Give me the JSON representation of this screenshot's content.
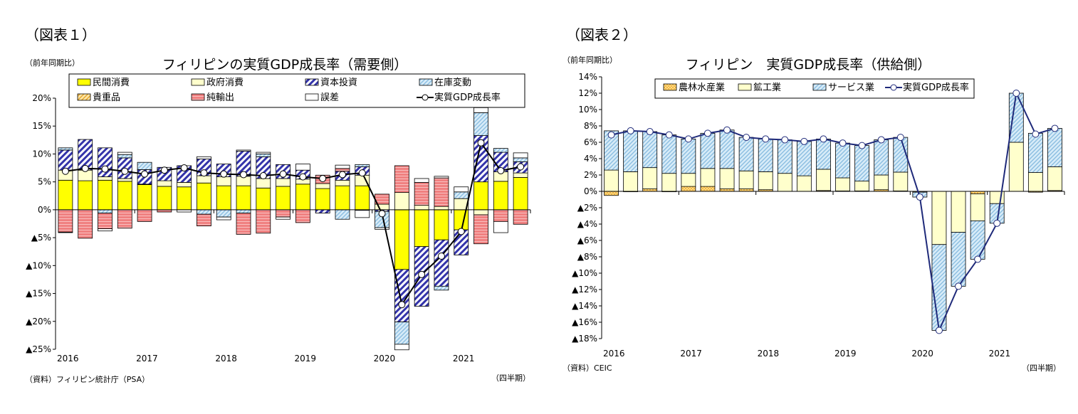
{
  "figure1": {
    "label": "（図表１）",
    "unit": "（前年同期比）",
    "source": "（資料）フィリピン統計庁（PSA）",
    "freq": "（四半期）"
  },
  "figure2": {
    "label": "（図表２）",
    "unit": "（前年同期比）",
    "source": "（資料）CEIC",
    "freq": "（四半期）"
  },
  "chart_data": [
    {
      "type": "bar",
      "stacked": true,
      "title": "フィリピンの実質GDP成長率（需要側）",
      "quarters": [
        "2016Q1",
        "2016Q2",
        "2016Q3",
        "2016Q4",
        "2017Q1",
        "2017Q2",
        "2017Q3",
        "2017Q4",
        "2018Q1",
        "2018Q2",
        "2018Q3",
        "2018Q4",
        "2019Q1",
        "2019Q2",
        "2019Q3",
        "2019Q4",
        "2020Q1",
        "2020Q2",
        "2020Q3",
        "2020Q4",
        "2021Q1",
        "2021Q2",
        "2021Q3",
        "2021Q4"
      ],
      "year_labels": [
        "2016",
        "2017",
        "2018",
        "2019",
        "2020",
        "2021"
      ],
      "ylim": [
        -25,
        20
      ],
      "yticks": [
        20,
        15,
        10,
        5,
        0,
        -5,
        -10,
        -15,
        -20,
        -25
      ],
      "ytick_labels": [
        "20%",
        "15%",
        "10%",
        "5%",
        "0%",
        "▲5%",
        "▲10%",
        "▲15%",
        "▲20%",
        "▲25%"
      ],
      "legend_position": "top",
      "series": [
        {
          "name": "民間消費",
          "color": "#ffff00",
          "pattern": "solid",
          "values": [
            5.3,
            5.2,
            5.3,
            5.1,
            4.5,
            4.2,
            4.1,
            4.8,
            4.3,
            4.3,
            3.9,
            4.2,
            4.6,
            3.8,
            4.3,
            4.3,
            0.0,
            -10.7,
            -6.6,
            -5.4,
            -3.6,
            5.0,
            5.1,
            5.8
          ]
        },
        {
          "name": "政府消費",
          "color": "#ffffcc",
          "pattern": "solid",
          "values": [
            1.8,
            1.9,
            0.6,
            0.5,
            0.1,
            1.0,
            0.8,
            1.3,
            1.6,
            1.7,
            1.7,
            1.4,
            0.9,
            0.9,
            1.0,
            1.9,
            1.0,
            3.1,
            0.8,
            0.6,
            2.0,
            -0.9,
            1.7,
            0.8
          ]
        },
        {
          "name": "資本投資",
          "color": "#3333aa",
          "pattern": "diagonal",
          "values": [
            3.6,
            5.5,
            5.2,
            3.7,
            2.6,
            2.4,
            3.0,
            3.0,
            2.3,
            4.5,
            3.9,
            2.5,
            1.6,
            -0.6,
            1.6,
            1.5,
            -0.3,
            -9.4,
            -10.7,
            -8.3,
            -4.5,
            8.3,
            3.5,
            2.0
          ]
        },
        {
          "name": "在庫変動",
          "color": "#9ccbe8",
          "pattern": "hatch",
          "values": [
            0.4,
            0.0,
            -0.6,
            0.6,
            1.3,
            0.0,
            0.0,
            -0.8,
            -1.3,
            -0.6,
            0.5,
            0.0,
            0.0,
            0.0,
            -1.7,
            0.4,
            -2.9,
            -4.0,
            0.0,
            -0.7,
            1.2,
            4.1,
            0.7,
            0.7
          ]
        },
        {
          "name": "貴重品",
          "color": "#f5c040",
          "pattern": "hatch",
          "values": [
            0,
            0,
            0,
            0,
            0,
            0,
            0,
            0,
            0,
            0,
            0,
            0,
            0,
            0,
            0,
            0,
            0,
            0,
            0,
            0,
            0,
            0,
            0,
            0
          ]
        },
        {
          "name": "純輸出",
          "color": "#f08080",
          "pattern": "hlines",
          "values": [
            -4.0,
            -5.1,
            -2.8,
            -3.3,
            -2.1,
            -0.4,
            0.0,
            -2.1,
            0.0,
            -3.8,
            -4.2,
            -1.3,
            -2.3,
            1.5,
            0.5,
            -0.1,
            1.8,
            4.8,
            4.1,
            5.1,
            0.0,
            -5.2,
            -2.1,
            -2.6
          ]
        },
        {
          "name": "誤差",
          "color": "#ffffff",
          "pattern": "solid",
          "values": [
            -0.1,
            0.0,
            -0.4,
            0.4,
            0.0,
            0.0,
            -0.4,
            0.4,
            -0.5,
            0.2,
            0.3,
            -0.4,
            1.1,
            0.0,
            0.6,
            -1.3,
            -0.3,
            -1.0,
            0.7,
            0.3,
            0.9,
            0.9,
            -2.0,
            0.9
          ]
        },
        {
          "name": "実質GDP成長率",
          "type": "line",
          "color": "#000000",
          "values": [
            6.9,
            7.4,
            7.3,
            6.9,
            6.4,
            7.1,
            7.5,
            6.6,
            6.4,
            6.3,
            6.1,
            6.4,
            5.9,
            5.6,
            6.3,
            6.6,
            -0.7,
            -17.0,
            -11.6,
            -8.3,
            -3.9,
            12.0,
            7.0,
            7.7
          ]
        }
      ]
    },
    {
      "type": "bar",
      "stacked": true,
      "title": "フィリピン　実質GDP成長率（供給側）",
      "quarters": [
        "2016Q1",
        "2016Q2",
        "2016Q3",
        "2016Q4",
        "2017Q1",
        "2017Q2",
        "2017Q3",
        "2017Q4",
        "2018Q1",
        "2018Q2",
        "2018Q3",
        "2018Q4",
        "2019Q1",
        "2019Q2",
        "2019Q3",
        "2019Q4",
        "2020Q1",
        "2020Q2",
        "2020Q3",
        "2020Q4",
        "2021Q1",
        "2021Q2",
        "2021Q3",
        "2021Q4"
      ],
      "year_labels": [
        "2016",
        "2017",
        "2018",
        "2019",
        "2020",
        "2021"
      ],
      "ylim": [
        -18,
        14
      ],
      "yticks": [
        14,
        12,
        10,
        8,
        6,
        4,
        2,
        0,
        -2,
        -4,
        -6,
        -8,
        -10,
        -12,
        -14,
        -16,
        -18
      ],
      "ytick_labels": [
        "14%",
        "12%",
        "10%",
        "8%",
        "6%",
        "4%",
        "2%",
        "0%",
        "▲2%",
        "▲4%",
        "▲6%",
        "▲8%",
        "▲10%",
        "▲12%",
        "▲14%",
        "▲16%",
        "▲18%"
      ],
      "legend_position": "top",
      "series": [
        {
          "name": "農林水産業",
          "color": "#f5b940",
          "pattern": "check",
          "values": [
            -0.5,
            -0.05,
            0.3,
            -0.05,
            0.6,
            0.6,
            0.3,
            0.3,
            0.2,
            0.0,
            0.0,
            0.1,
            0.05,
            0.05,
            0.2,
            0.05,
            0.0,
            0.0,
            0.0,
            -0.3,
            0.0,
            0.0,
            -0.1,
            0.1
          ]
        },
        {
          "name": "鉱工業",
          "color": "#ffffcc",
          "pattern": "solid",
          "values": [
            2.6,
            2.4,
            2.6,
            2.2,
            1.6,
            2.2,
            2.5,
            2.2,
            2.2,
            2.2,
            1.9,
            2.6,
            1.6,
            1.2,
            1.8,
            2.3,
            -0.1,
            -6.5,
            -5.0,
            -3.3,
            -1.5,
            6.0,
            2.3,
            2.9
          ]
        },
        {
          "name": "サービス業",
          "color": "#9ccbe8",
          "pattern": "hatch",
          "values": [
            4.8,
            5.0,
            4.4,
            4.7,
            4.2,
            4.3,
            4.7,
            4.1,
            4.0,
            4.1,
            4.2,
            3.7,
            4.25,
            4.35,
            4.3,
            4.25,
            -0.6,
            -10.5,
            -6.6,
            -4.7,
            -2.4,
            6.0,
            4.8,
            4.7
          ]
        },
        {
          "name": "実質GDP成長率",
          "type": "line",
          "color": "#1f2a7a",
          "values": [
            6.9,
            7.4,
            7.3,
            6.9,
            6.4,
            7.1,
            7.5,
            6.6,
            6.4,
            6.3,
            6.1,
            6.4,
            5.9,
            5.6,
            6.3,
            6.6,
            -0.7,
            -17.0,
            -11.6,
            -8.3,
            -3.9,
            12.0,
            7.0,
            7.7
          ]
        }
      ]
    }
  ]
}
